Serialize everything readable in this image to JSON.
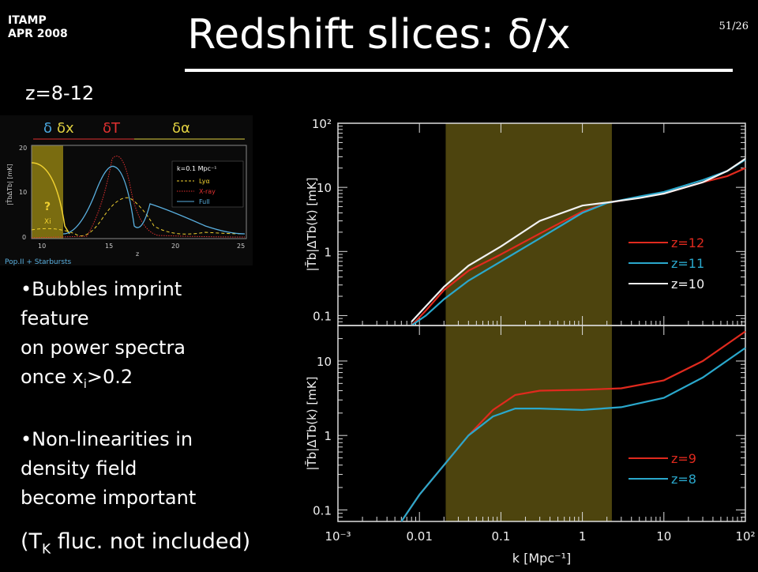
{
  "header": {
    "conference_line1": "ITAMP",
    "conference_line2": "APR 2008",
    "title": "Redshift slices: δ/x",
    "page": "51/26"
  },
  "subtitle": "z=8-12",
  "bullets": [
    {
      "lines": [
        "•Bubbles imprint",
        "feature",
        "on power spectra"
      ],
      "tail_pre": "once x",
      "tail_sub": "i",
      "tail_post": ">0.2"
    },
    {
      "lines": [
        "•Non-linearities in",
        "density field",
        "become important"
      ]
    }
  ],
  "note": {
    "pre": "(T",
    "sub": "K",
    "post": " fluc. not included)"
  },
  "inset": {
    "header_labels": [
      "δ",
      "δx",
      "δT",
      "δα"
    ],
    "legend_title": "k=0.1 Mpc⁻¹",
    "legend": [
      "Lyα",
      "X-ray",
      "Full"
    ],
    "y_label": "|T̄bΔTb| [mK]",
    "y_ticks": [
      "0",
      "10",
      "20"
    ],
    "x_ticks": [
      "10",
      "15",
      "20",
      "25"
    ],
    "x_label": "z",
    "question": "?",
    "xi": "Xi",
    "footer": "Pop.II + Starbursts"
  },
  "chart_data": [
    {
      "type": "line",
      "ylabel": "|T̄b|ΔTb(k) [mK]",
      "yscale": "log",
      "ylim": [
        0.07,
        100
      ],
      "xscale": "log",
      "xlim": [
        0.001,
        100
      ],
      "y_ticks": [
        "10²",
        "10",
        "1",
        "0.1"
      ],
      "highlight_band": [
        0.021,
        2.3
      ],
      "series": [
        {
          "name": "z=12",
          "color": "#e02a1e",
          "x": [
            0.008,
            0.012,
            0.02,
            0.04,
            0.1,
            0.3,
            1,
            2,
            5,
            10,
            30,
            60,
            100
          ],
          "y": [
            0.07,
            0.12,
            0.25,
            0.5,
            0.9,
            1.9,
            4.2,
            5.7,
            7,
            8,
            12,
            15,
            20
          ]
        },
        {
          "name": "z=11",
          "color": "#2aa8cc",
          "x": [
            0.008,
            0.012,
            0.02,
            0.04,
            0.1,
            0.3,
            1,
            2,
            5,
            10,
            30,
            60,
            100
          ],
          "y": [
            0.07,
            0.1,
            0.18,
            0.35,
            0.7,
            1.6,
            4,
            5.7,
            7.2,
            8.5,
            13,
            18,
            27
          ]
        },
        {
          "name": "z=10",
          "color": "#f2f2f2",
          "x": [
            0.008,
            0.012,
            0.02,
            0.04,
            0.1,
            0.3,
            1,
            2,
            5,
            10,
            30,
            60,
            100
          ],
          "y": [
            0.08,
            0.14,
            0.28,
            0.6,
            1.2,
            3,
            5.2,
            5.8,
            6.8,
            8,
            12,
            18,
            28
          ]
        }
      ]
    },
    {
      "type": "line",
      "ylabel": "|T̄b|ΔTb(k) [mK]",
      "xlabel": "k [Mpc⁻¹]",
      "yscale": "log",
      "ylim": [
        0.07,
        30
      ],
      "xscale": "log",
      "xlim": [
        0.001,
        100
      ],
      "y_ticks": [
        "10",
        "1",
        "0.1"
      ],
      "x_ticks": [
        "10⁻³",
        "0.01",
        "0.1",
        "1",
        "10",
        "10²"
      ],
      "highlight_band": [
        0.021,
        2.3
      ],
      "series": [
        {
          "name": "z=9",
          "color": "#e02a1e",
          "x": [
            0.006,
            0.01,
            0.02,
            0.04,
            0.08,
            0.15,
            0.3,
            1,
            3,
            10,
            30,
            100
          ],
          "y": [
            0.07,
            0.16,
            0.4,
            1,
            2.2,
            3.5,
            4,
            4.1,
            4.3,
            5.5,
            10,
            25
          ]
        },
        {
          "name": "z=8",
          "color": "#2aa8cc",
          "x": [
            0.006,
            0.01,
            0.02,
            0.04,
            0.08,
            0.15,
            0.3,
            1,
            3,
            10,
            30,
            100
          ],
          "y": [
            0.07,
            0.16,
            0.4,
            1,
            1.8,
            2.3,
            2.3,
            2.2,
            2.4,
            3.2,
            6,
            15
          ]
        }
      ]
    }
  ]
}
